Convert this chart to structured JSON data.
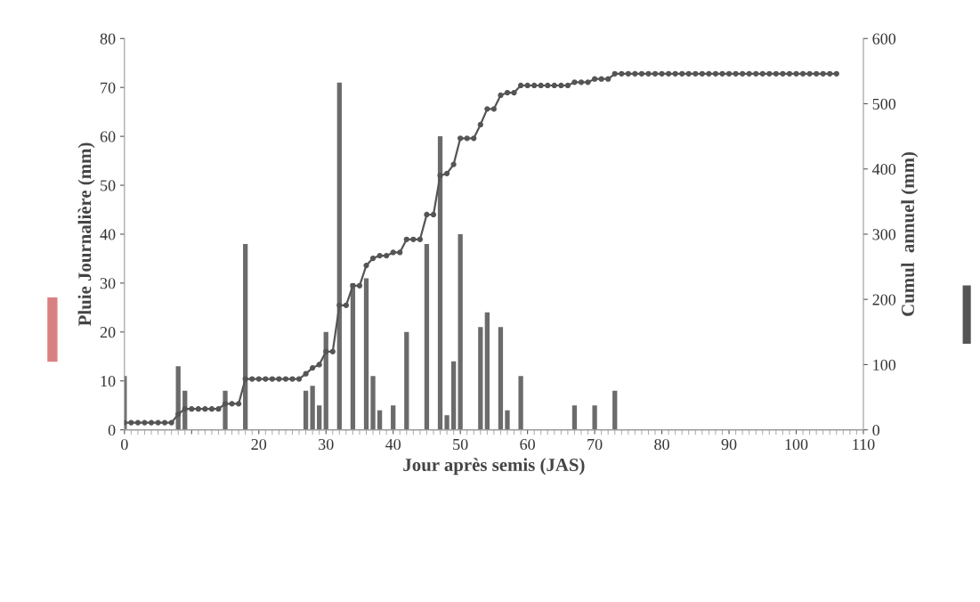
{
  "chart_data": {
    "type": "bar",
    "xlabel": "Jour après semis (JAS)",
    "ylabel": "Pluie Journalière (mm)",
    "y2label": "Cumul  annuel (mm)",
    "xlim": [
      0,
      110
    ],
    "xticks": [
      0,
      {
        "value": 10,
        "label": null
      },
      20,
      30,
      40,
      50,
      60,
      70,
      80,
      90,
      100,
      110
    ],
    "ylim": [
      0,
      80
    ],
    "yticks": [
      0,
      10,
      20,
      30,
      40,
      50,
      60,
      70,
      80
    ],
    "y2lim": [
      0,
      600
    ],
    "y2ticks": [
      0,
      100,
      200,
      300,
      400,
      500,
      600
    ],
    "grid": false,
    "legend": false,
    "series": [
      {
        "color": "#6b6b6b",
        "x": [
          0,
          8,
          9,
          15,
          18,
          27,
          28,
          29,
          30,
          32,
          34,
          36,
          37,
          38,
          40,
          42,
          45,
          47,
          48,
          49,
          50,
          53,
          54,
          56,
          57,
          59,
          67,
          70,
          73
        ],
        "values": [
          11,
          13,
          8,
          8,
          38,
          8,
          9,
          5,
          20,
          71,
          30,
          31,
          11,
          4,
          5,
          20,
          38,
          60,
          3,
          14,
          40,
          21,
          24,
          21,
          4,
          11,
          5,
          5,
          8
        ]
      },
      {
        "type": "line",
        "axis": "y2",
        "color": "#555555",
        "marker": "circle",
        "line_style": "solid",
        "x": [
          0,
          1,
          2,
          3,
          4,
          5,
          6,
          7,
          8,
          9,
          10,
          11,
          12,
          13,
          14,
          15,
          16,
          17,
          18,
          19,
          20,
          21,
          22,
          23,
          24,
          25,
          26,
          27,
          28,
          29,
          30,
          31,
          32,
          33,
          34,
          35,
          36,
          37,
          38,
          39,
          40,
          41,
          42,
          43,
          44,
          45,
          46,
          47,
          48,
          49,
          50,
          51,
          52,
          53,
          54,
          55,
          56,
          57,
          58,
          59,
          60,
          61,
          62,
          63,
          64,
          65,
          66,
          67,
          68,
          69,
          70,
          71,
          72,
          73,
          74,
          75,
          76,
          77,
          78,
          79,
          80,
          81,
          82,
          83,
          84,
          85,
          86,
          87,
          88,
          89,
          90,
          91,
          92,
          93,
          94,
          95,
          96,
          97,
          98,
          99,
          100,
          101,
          102,
          103,
          104,
          105,
          106
        ],
        "values": [
          11,
          11,
          11,
          11,
          11,
          11,
          11,
          11,
          24,
          32,
          32,
          32,
          32,
          32,
          32,
          40,
          40,
          40,
          78,
          78,
          78,
          78,
          78,
          78,
          78,
          78,
          78,
          86,
          95,
          100,
          120,
          120,
          191,
          191,
          221,
          221,
          252,
          263,
          267,
          267,
          272,
          272,
          292,
          292,
          292,
          330,
          330,
          390,
          393,
          407,
          447,
          447,
          447,
          468,
          492,
          492,
          513,
          517,
          517,
          528,
          528,
          528,
          528,
          528,
          528,
          528,
          528,
          533,
          533,
          533,
          538,
          538,
          538,
          546,
          546,
          546,
          546,
          546,
          546,
          546,
          546,
          546,
          546,
          546,
          546,
          546,
          546,
          546,
          546,
          546,
          546,
          546,
          546,
          546,
          546,
          546,
          546,
          546,
          546,
          546,
          546,
          546,
          546,
          546,
          546,
          546,
          546
        ]
      }
    ]
  }
}
